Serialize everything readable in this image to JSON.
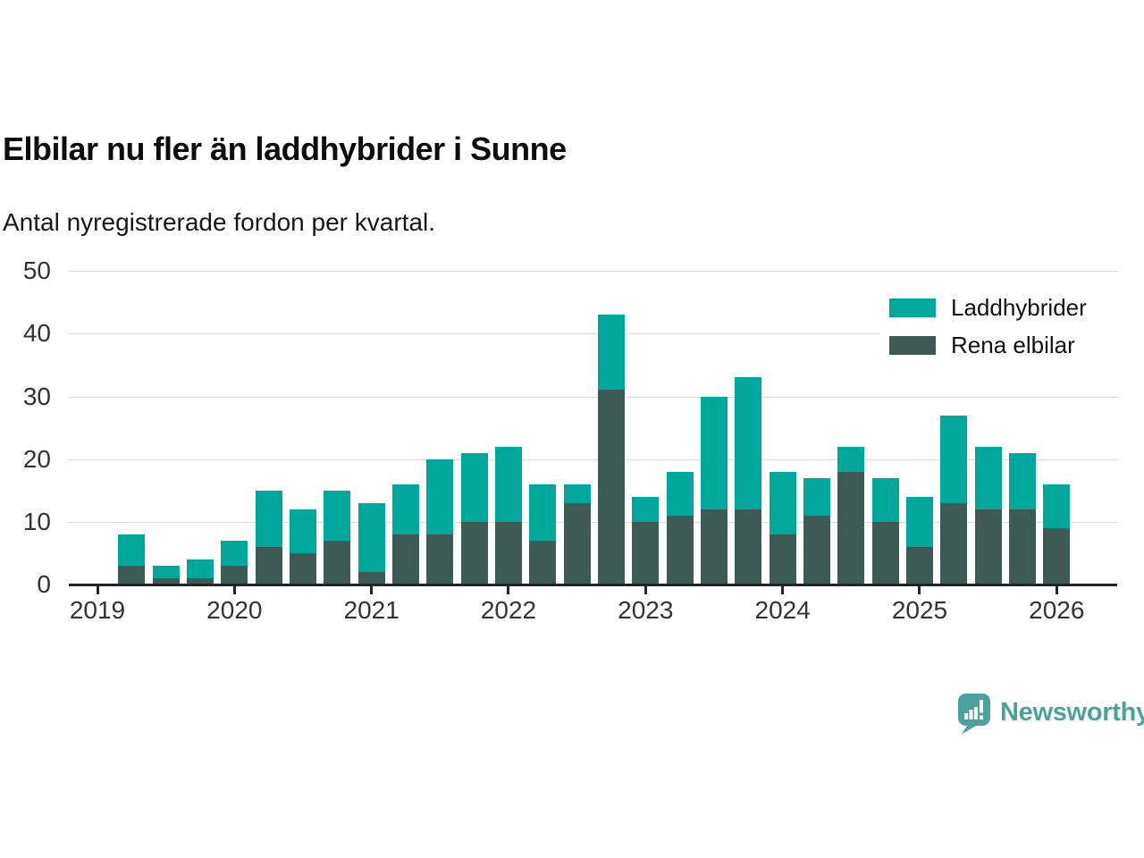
{
  "chart_data": {
    "type": "bar",
    "stacked": true,
    "title": "Elbilar nu fler än laddhybrider i Sunne",
    "subtitle": "Antal nyregistrerade fordon per kvartal.",
    "categories": [
      "2019 Q2",
      "2019 Q3",
      "2019 Q4",
      "2020 Q1",
      "2020 Q2",
      "2020 Q3",
      "2020 Q4",
      "2021 Q1",
      "2021 Q2",
      "2021 Q3",
      "2021 Q4",
      "2022 Q1",
      "2022 Q2",
      "2022 Q3",
      "2022 Q4",
      "2023 Q1",
      "2023 Q2",
      "2023 Q3",
      "2023 Q4",
      "2024 Q1",
      "2024 Q2",
      "2024 Q3",
      "2024 Q4",
      "2025 Q1",
      "2025 Q2",
      "2025 Q3",
      "2025 Q4",
      "2026 Q1"
    ],
    "series": [
      {
        "name": "Laddhybrider",
        "color": "#00a79b",
        "values": [
          5,
          2,
          3,
          4,
          9,
          7,
          8,
          11,
          8,
          12,
          11,
          12,
          9,
          3,
          12,
          4,
          7,
          18,
          21,
          10,
          6,
          4,
          7,
          8,
          14,
          10,
          9,
          7
        ]
      },
      {
        "name": "Rena elbilar",
        "color": "#3d5a54",
        "values": [
          3,
          1,
          1,
          3,
          6,
          5,
          7,
          2,
          8,
          8,
          10,
          10,
          7,
          13,
          31,
          10,
          11,
          12,
          12,
          8,
          11,
          18,
          10,
          6,
          13,
          12,
          12,
          9
        ]
      }
    ],
    "stack_bottom_to_top": [
      "Rena elbilar",
      "Laddhybrider"
    ],
    "totals": [
      8,
      3,
      4,
      7,
      15,
      12,
      15,
      13,
      16,
      20,
      21,
      22,
      16,
      16,
      43,
      14,
      18,
      30,
      33,
      18,
      17,
      22,
      17,
      14,
      27,
      22,
      21,
      16
    ],
    "ylim": [
      0,
      50
    ],
    "yticks": [
      0,
      10,
      20,
      30,
      40,
      50
    ],
    "xticks": [
      "2019",
      "2020",
      "2021",
      "2022",
      "2023",
      "2024",
      "2025",
      "2026"
    ],
    "grid": "horizontal",
    "legend_position": "top-right"
  },
  "footer": {
    "brand": "Newsworthy"
  },
  "colors": {
    "brand_teal": "#4ba29d",
    "axis": "#242424",
    "gridline": "#dadada",
    "tick_text": "#333333"
  }
}
